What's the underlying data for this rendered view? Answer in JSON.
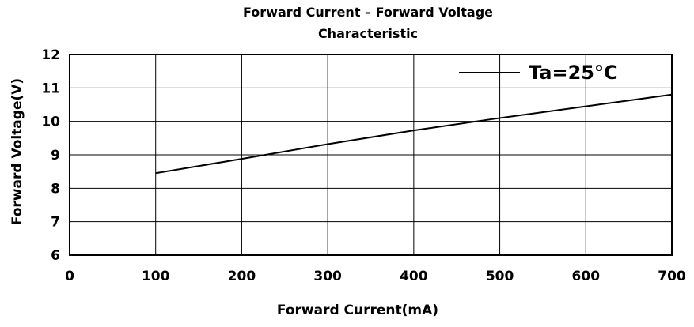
{
  "chart_data": {
    "type": "line",
    "title_line1": "Forward Current – Forward Voltage",
    "title_line2": "Characteristic",
    "xlabel": "Forward Current(mA)",
    "ylabel": "Forward Voltage(V)",
    "xlim": [
      0,
      700
    ],
    "ylim": [
      6,
      12
    ],
    "x_ticks": [
      "0",
      "100",
      "200",
      "300",
      "400",
      "500",
      "600",
      "700"
    ],
    "y_ticks": [
      "6",
      "7",
      "8",
      "9",
      "10",
      "11",
      "12"
    ],
    "grid": true,
    "legend_position": "top-right",
    "series": [
      {
        "name": "Ta=25°C",
        "color": "#000000",
        "x": [
          100,
          200,
          300,
          400,
          500,
          600,
          700
        ],
        "y": [
          8.45,
          8.88,
          9.32,
          9.73,
          10.1,
          10.45,
          10.8
        ]
      }
    ]
  }
}
